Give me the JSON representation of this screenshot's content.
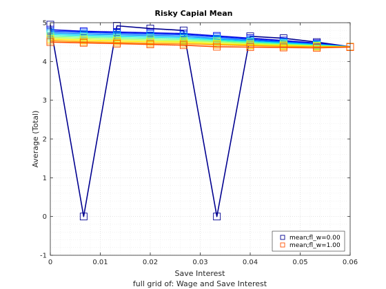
{
  "chart_data": {
    "type": "line",
    "title": "Risky Capial Mean",
    "xlabel": "Save Interest",
    "ylabel": "Average (Total)",
    "subtitle": "full grid of: Wage and Save Interest",
    "xlim": [
      0,
      0.06
    ],
    "ylim": [
      -1,
      5
    ],
    "xticks": [
      "0",
      "0.01",
      "0.02",
      "0.03",
      "0.04",
      "0.05",
      "0.06"
    ],
    "yticks": [
      "-1",
      "0",
      "1",
      "2",
      "3",
      "4",
      "5"
    ],
    "grid": true,
    "legend_position": "bottom-right",
    "x": [
      0,
      0.00667,
      0.01333,
      0.02,
      0.02667,
      0.03333,
      0.04,
      0.04667,
      0.05333,
      0.06
    ],
    "series": [
      {
        "name": "mean;fl_w=0.00",
        "color": "#00008F",
        "marker": "square",
        "values": [
          4.95,
          0.0,
          4.92,
          4.85,
          4.8,
          0.0,
          4.65,
          4.6,
          4.5,
          4.38
        ]
      },
      {
        "color": "#0000DF",
        "values": [
          4.82,
          4.78,
          4.76,
          4.74,
          4.72,
          4.66,
          4.6,
          4.54,
          4.47,
          4.38
        ]
      },
      {
        "color": "#0040FF",
        "values": [
          4.78,
          4.75,
          4.73,
          4.71,
          4.69,
          4.63,
          4.57,
          4.51,
          4.45,
          4.38
        ]
      },
      {
        "color": "#0090FF",
        "values": [
          4.74,
          4.71,
          4.69,
          4.67,
          4.65,
          4.59,
          4.54,
          4.49,
          4.44,
          4.38
        ]
      },
      {
        "color": "#10E0EF",
        "values": [
          4.7,
          4.67,
          4.65,
          4.63,
          4.61,
          4.56,
          4.51,
          4.47,
          4.43,
          4.38
        ]
      },
      {
        "color": "#60FF9F",
        "values": [
          4.66,
          4.63,
          4.61,
          4.59,
          4.57,
          4.53,
          4.49,
          4.45,
          4.41,
          4.38
        ]
      },
      {
        "color": "#B0FF50",
        "values": [
          4.62,
          4.59,
          4.57,
          4.55,
          4.53,
          4.5,
          4.46,
          4.43,
          4.4,
          4.38
        ]
      },
      {
        "color": "#FFEF00",
        "values": [
          4.58,
          4.55,
          4.53,
          4.51,
          4.5,
          4.46,
          4.43,
          4.41,
          4.39,
          4.38
        ]
      },
      {
        "color": "#FFA000",
        "values": [
          4.54,
          4.51,
          4.49,
          4.47,
          4.46,
          4.43,
          4.41,
          4.39,
          4.38,
          4.38
        ]
      },
      {
        "name": "mean;fl_w=1.00",
        "color": "#FF5000",
        "marker": "square",
        "values": [
          4.5,
          4.48,
          4.46,
          4.44,
          4.42,
          4.38,
          4.37,
          4.36,
          4.35,
          4.37
        ]
      }
    ]
  }
}
